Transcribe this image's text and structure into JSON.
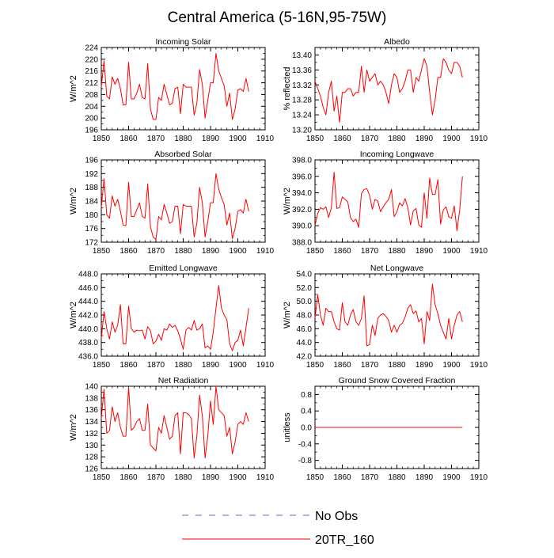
{
  "title": "Central America (5-16N,95-75W)",
  "legend": [
    {
      "label": "No Obs",
      "color": "#6666cc",
      "dashed": true
    },
    {
      "label": "20TR_160",
      "color": "#ff0000",
      "dashed": false
    }
  ],
  "chart_data": [
    {
      "type": "line",
      "title": "Incoming Solar",
      "ylabel": "W/m^2",
      "xlim": [
        1850,
        1910
      ],
      "ylim": [
        196,
        224
      ],
      "xticks": [
        1850,
        1860,
        1870,
        1880,
        1890,
        1900,
        1910
      ],
      "yticks": [
        196,
        200,
        204,
        208,
        212,
        216,
        220,
        224
      ],
      "ytick_labels": [
        "196",
        "200",
        "204",
        "208",
        "212",
        "216",
        "220",
        "224"
      ],
      "x_start": 1850,
      "series": [
        {
          "name": "20TR_160",
          "values": [
            210.5,
            219.5,
            207.5,
            206.5,
            214,
            211.5,
            213.5,
            210,
            204.5,
            204.5,
            219,
            206.5,
            206.5,
            208.5,
            211.5,
            207,
            206.5,
            218.5,
            203,
            199.5,
            199.5,
            207,
            206,
            211.5,
            208,
            204.5,
            205,
            210,
            210.5,
            201.5,
            211.5,
            210.5,
            210.5,
            210.5,
            201,
            205,
            216.5,
            211.5,
            200,
            206,
            212,
            212,
            222,
            216,
            213.5,
            211,
            204,
            208.5,
            199.5,
            203,
            209.5,
            210,
            209,
            213.5,
            209
          ]
        }
      ]
    },
    {
      "type": "line",
      "title": "Albedo",
      "ylabel": "% reflected",
      "xlim": [
        1850,
        1910
      ],
      "ylim": [
        13.2,
        13.42
      ],
      "xticks": [
        1850,
        1860,
        1870,
        1880,
        1890,
        1900,
        1910
      ],
      "yticks": [
        13.2,
        13.24,
        13.28,
        13.32,
        13.36,
        13.4
      ],
      "ytick_labels": [
        "13.20",
        "13.24",
        "13.28",
        "13.32",
        "13.36",
        "13.40"
      ],
      "x_start": 1850,
      "series": [
        {
          "name": "20TR_160",
          "values": [
            13.33,
            13.31,
            13.29,
            13.26,
            13.24,
            13.3,
            13.33,
            13.25,
            13.29,
            13.22,
            13.3,
            13.3,
            13.31,
            13.31,
            13.29,
            13.3,
            13.3,
            13.37,
            13.3,
            13.36,
            13.33,
            13.34,
            13.35,
            13.32,
            13.33,
            13.32,
            13.3,
            13.27,
            13.32,
            13.35,
            13.34,
            13.3,
            13.31,
            13.33,
            13.36,
            13.36,
            13.3,
            13.34,
            13.33,
            13.36,
            13.39,
            13.37,
            13.3,
            13.24,
            13.28,
            13.34,
            13.34,
            13.39,
            13.38,
            13.36,
            13.35,
            13.38,
            13.38,
            13.37,
            13.34
          ]
        }
      ]
    },
    {
      "type": "line",
      "title": "Absorbed Solar",
      "ylabel": "W/m^2",
      "xlim": [
        1850,
        1910
      ],
      "ylim": [
        172,
        196
      ],
      "xticks": [
        1850,
        1860,
        1870,
        1880,
        1890,
        1900,
        1910
      ],
      "yticks": [
        172,
        176,
        180,
        184,
        188,
        192,
        196
      ],
      "ytick_labels": [
        "172",
        "176",
        "180",
        "184",
        "188",
        "192",
        "196"
      ],
      "x_start": 1850,
      "series": [
        {
          "name": "20TR_160",
          "values": [
            182,
            190.5,
            180,
            179,
            185.5,
            182.5,
            184.5,
            181,
            177,
            176.8,
            189.5,
            179.5,
            179.5,
            181.5,
            183.5,
            179.5,
            179,
            189,
            176.5,
            173.5,
            172.8,
            179.5,
            178.5,
            183,
            180.5,
            177.5,
            178,
            182.5,
            182.5,
            174.5,
            183,
            182.5,
            182.5,
            182.5,
            173.5,
            177.5,
            188,
            183.5,
            173.5,
            178,
            183.5,
            183.5,
            192,
            187.5,
            185,
            183,
            177,
            180.5,
            173,
            176,
            181,
            181.5,
            180.5,
            184.5,
            181
          ]
        }
      ]
    },
    {
      "type": "line",
      "title": "Incoming Longwave",
      "ylabel": "W/m^2",
      "xlim": [
        1850,
        1910
      ],
      "ylim": [
        388,
        398
      ],
      "xticks": [
        1850,
        1860,
        1870,
        1880,
        1890,
        1900,
        1910
      ],
      "yticks": [
        388,
        390,
        392,
        394,
        396,
        398
      ],
      "ytick_labels": [
        "388.0",
        "390.0",
        "392.0",
        "394.0",
        "396.0",
        "398.0"
      ],
      "x_start": 1850,
      "series": [
        {
          "name": "20TR_160",
          "values": [
            390,
            391.5,
            392.2,
            392,
            392.3,
            391,
            392.2,
            396.5,
            392.1,
            392.2,
            393.5,
            393.2,
            392.9,
            391,
            390.5,
            390.8,
            389.8,
            393.9,
            394.4,
            394.5,
            393.7,
            392,
            393.2,
            393,
            391.7,
            392.3,
            392.8,
            393.2,
            394.4,
            391.1,
            391.7,
            392.8,
            392.4,
            393.3,
            392.2,
            390.1,
            391.8,
            392.1,
            390.1,
            389.8,
            394,
            390.9,
            395.8,
            393.8,
            393.8,
            395.6,
            390.2,
            391.9,
            392.3,
            391.1,
            390.9,
            392.4,
            389.4,
            391.9,
            396
          ]
        }
      ]
    },
    {
      "type": "line",
      "title": "Emitted Longwave",
      "ylabel": "W/m^2",
      "xlim": [
        1850,
        1910
      ],
      "ylim": [
        436,
        448
      ],
      "xticks": [
        1850,
        1860,
        1870,
        1880,
        1890,
        1900,
        1910
      ],
      "yticks": [
        436,
        438,
        440,
        442,
        444,
        446,
        448
      ],
      "ytick_labels": [
        "436.0",
        "438.0",
        "440.0",
        "442.0",
        "444.0",
        "446.0",
        "448.0"
      ],
      "x_start": 1850,
      "series": [
        {
          "name": "20TR_160",
          "values": [
            438.5,
            442.5,
            440,
            438.5,
            441,
            439.5,
            440.5,
            443.5,
            437.8,
            437.8,
            443.3,
            440,
            439.5,
            439.8,
            439.7,
            439.8,
            438.5,
            440.3,
            439.7,
            437.8,
            438.2,
            439.2,
            438.3,
            440,
            439.8,
            440.7,
            440.2,
            440.5,
            439.7,
            438.5,
            437,
            439.8,
            440.2,
            439.8,
            441.2,
            439.8,
            440,
            440.7,
            437.2,
            437.5,
            437,
            439.5,
            443,
            446.3,
            443,
            442,
            441.3,
            437.8,
            436.8,
            438,
            438.3,
            439.8,
            437.5,
            440.2,
            443
          ]
        }
      ]
    },
    {
      "type": "line",
      "title": "Net Longwave",
      "ylabel": "W/m^2",
      "xlim": [
        1850,
        1910
      ],
      "ylim": [
        42,
        54
      ],
      "xticks": [
        1850,
        1860,
        1870,
        1880,
        1890,
        1900,
        1910
      ],
      "yticks": [
        42,
        44,
        46,
        48,
        50,
        52,
        54
      ],
      "ytick_labels": [
        "42.0",
        "44.0",
        "46.0",
        "48.0",
        "50.0",
        "52.0",
        "54.0"
      ],
      "x_start": 1850,
      "series": [
        {
          "name": "20TR_160",
          "values": [
            47.5,
            51,
            48,
            46.5,
            49,
            48.5,
            48.5,
            47,
            46,
            45.8,
            49.8,
            47,
            46.5,
            48,
            48.8,
            47,
            46.5,
            47.5,
            50.8,
            43.5,
            43.7,
            46.5,
            45,
            47.5,
            48,
            48.2,
            47.8,
            47.2,
            45.5,
            46.5,
            45.5,
            46.5,
            46.8,
            47.7,
            49,
            49.5,
            48.2,
            48.6,
            47,
            47.5,
            43.8,
            48.5,
            47.2,
            52.5,
            49.5,
            48.2,
            46.5,
            45.5,
            44.5,
            47.5,
            44.5,
            46.5,
            48,
            48.5,
            47
          ]
        }
      ]
    },
    {
      "type": "line",
      "title": "Net Radiation",
      "ylabel": "W/m^2",
      "xlim": [
        1850,
        1910
      ],
      "ylim": [
        126,
        140
      ],
      "xticks": [
        1850,
        1860,
        1870,
        1880,
        1890,
        1900,
        1910
      ],
      "yticks": [
        126,
        128,
        130,
        132,
        134,
        136,
        138,
        140
      ],
      "ytick_labels": [
        "126",
        "128",
        "130",
        "132",
        "134",
        "136",
        "138",
        "140"
      ],
      "x_start": 1850,
      "series": [
        {
          "name": "20TR_160",
          "values": [
            134.5,
            139.5,
            132,
            132.5,
            136.5,
            134,
            135.5,
            133,
            131.5,
            131.5,
            139.8,
            132.5,
            133,
            134,
            134.5,
            132.5,
            132.5,
            137,
            130,
            129.5,
            129,
            133,
            132,
            135,
            133,
            131,
            131.5,
            135,
            135.5,
            128.5,
            135.5,
            135.5,
            135.2,
            134.5,
            127.8,
            131.5,
            138.5,
            135,
            127.8,
            131.5,
            137.5,
            133.5,
            140,
            136,
            135.5,
            135,
            131.5,
            133,
            128.5,
            130.5,
            133.5,
            134,
            133.5,
            135.5,
            134
          ]
        }
      ]
    },
    {
      "type": "line",
      "title": "Ground Snow Covered Fraction",
      "ylabel": "unitless",
      "xlim": [
        1850,
        1910
      ],
      "ylim": [
        -1,
        1
      ],
      "xticks": [
        1850,
        1860,
        1870,
        1880,
        1890,
        1900,
        1910
      ],
      "yticks": [
        -0.8,
        -0.4,
        0,
        0.4,
        0.8
      ],
      "ytick_labels": [
        "-0.8",
        "-0.4",
        "0.0",
        "0.4",
        "0.8"
      ],
      "x_start": 1850,
      "series": [
        {
          "name": "20TR_160",
          "values": [
            0,
            0,
            0,
            0,
            0,
            0,
            0,
            0,
            0,
            0,
            0,
            0,
            0,
            0,
            0,
            0,
            0,
            0,
            0,
            0,
            0,
            0,
            0,
            0,
            0,
            0,
            0,
            0,
            0,
            0,
            0,
            0,
            0,
            0,
            0,
            0,
            0,
            0,
            0,
            0,
            0,
            0,
            0,
            0,
            0,
            0,
            0,
            0,
            0,
            0,
            0,
            0,
            0,
            0,
            0
          ]
        }
      ]
    }
  ]
}
